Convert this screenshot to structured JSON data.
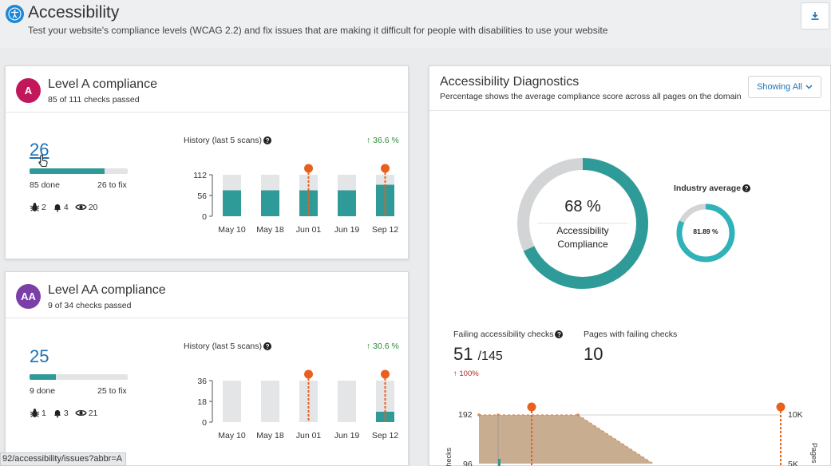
{
  "header": {
    "title": "Accessibility",
    "subtitle": "Test your website's compliance levels (WCAG 2.2) and fix issues that are making it difficult for people with disabilities to use your website"
  },
  "levelA": {
    "badge": "A",
    "badge_color": "#c2185b",
    "title": "Level A compliance",
    "subtitle": "85 of 111 checks passed",
    "to_fix_number": "26",
    "progress_fraction": 0.766,
    "done_label": "85 done",
    "to_fix_label": "26 to fix",
    "bugs": "2",
    "alerts": "4",
    "views": "20",
    "history_title": "History (last 5 scans)",
    "trend": "36.6 %",
    "chart_data": {
      "type": "bar",
      "categories": [
        "May 10",
        "May 18",
        "Jun 01",
        "Jun 19",
        "Sep 12"
      ],
      "values": [
        70,
        70,
        70,
        70,
        85
      ],
      "max": 112,
      "yticks": [
        "112",
        "56",
        "0"
      ],
      "markers": [
        "Jun 01",
        "Sep 12"
      ]
    }
  },
  "levelAA": {
    "badge": "AA",
    "badge_color": "#7b3fa8",
    "title": "Level AA compliance",
    "subtitle": "9 of 34 checks passed",
    "to_fix_number": "25",
    "progress_fraction": 0.265,
    "done_label": "9 done",
    "to_fix_label": "25 to fix",
    "bugs": "1",
    "alerts": "3",
    "views": "21",
    "history_title": "History (last 5 scans)",
    "trend": "30.6 %",
    "chart_data": {
      "type": "bar",
      "categories": [
        "May 10",
        "May 18",
        "Jun 01",
        "Jun 19",
        "Sep 12"
      ],
      "values": [
        0,
        0,
        0,
        0,
        9
      ],
      "max": 36,
      "yticks": [
        "36",
        "18",
        "0"
      ],
      "markers": [
        "Jun 01",
        "Sep 12"
      ]
    }
  },
  "diagnostics": {
    "title": "Accessibility Diagnostics",
    "subtitle": "Percentage shows the average compliance score across all pages on the domain",
    "filter_label": "Showing All",
    "compliance_value": "68 %",
    "compliance_fraction": 0.68,
    "compliance_label_line1": "Accessibility",
    "compliance_label_line2": "Compliance",
    "industry_label": "Industry average",
    "industry_value": "81.89 %",
    "industry_fraction": 0.8189,
    "failing_label": "Failing accessibility checks",
    "failing_value": "51",
    "failing_total": "/145",
    "failing_change": "100%",
    "pages_label": "Pages with failing checks",
    "pages_value": "10",
    "bottom_chart": {
      "y_left_top": "192",
      "y_left_mid": "96",
      "y_right_top": "10K",
      "y_right_mid": "5K",
      "y_left_label": "Checks",
      "y_right_label": "Pages"
    }
  },
  "colors": {
    "teal": "#2f9b98",
    "grey_bar": "#e3e5e7",
    "marker": "#e8601c",
    "donut_grey": "#d3d4d5",
    "link": "#1c72b8"
  },
  "status_url": "92/accessibility/issues?abbr=A"
}
